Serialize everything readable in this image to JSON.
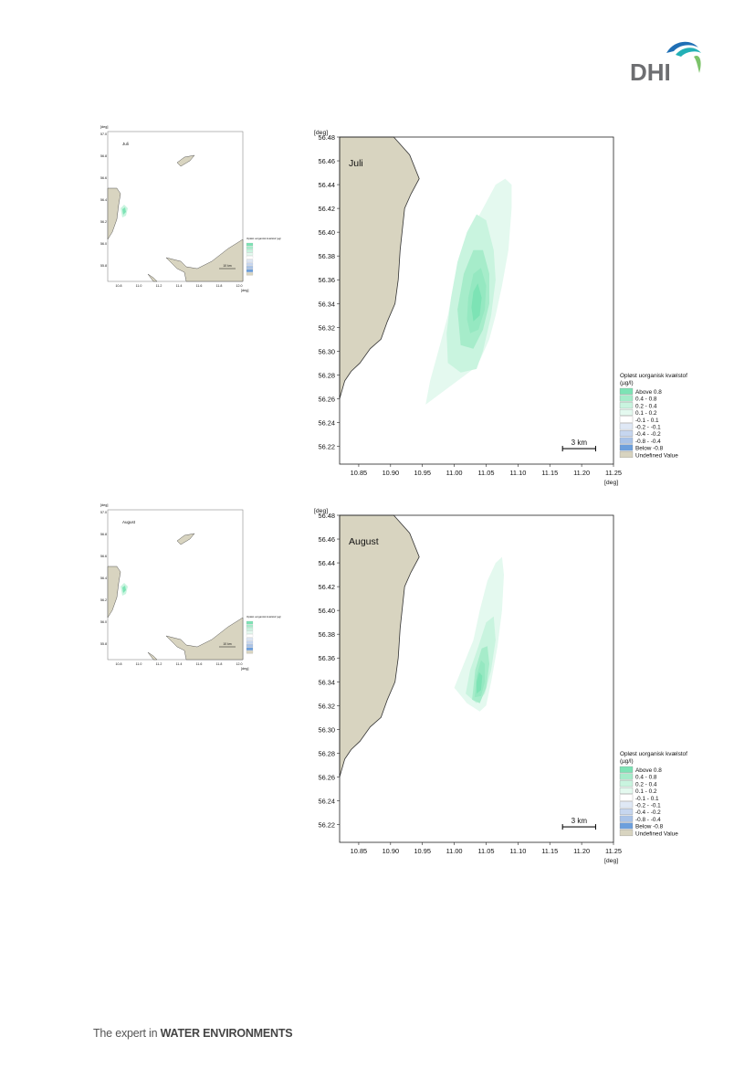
{
  "brand": {
    "logo_text": "DHI",
    "tagline_plain": "The expert in ",
    "tagline_bold": "WATER ENVIRONMENTS"
  },
  "colors": {
    "land": "#d8d4c0",
    "coast": "#333333",
    "above08": "#7de3b5",
    "c04_08": "#a6ecca",
    "c02_04": "#c9f4df",
    "c01_02": "#e4f9ef",
    "zero": "#ffffff",
    "n01_02": "#dfe8f5",
    "n02_04": "#c6d6ef",
    "n04_08": "#a9c3e8",
    "below": "#6c9fdc",
    "logo_blue": "#1f6fb5",
    "logo_teal": "#22b0b6",
    "logo_green": "#7cc36a"
  },
  "chart_data": [
    {
      "type": "heatmap",
      "title": "Juli",
      "xlabel": "[deg]",
      "ylabel": "[deg]",
      "xlim": [
        10.82,
        11.25
      ],
      "ylim": [
        56.205,
        56.48
      ],
      "xticks": [
        "10.85",
        "10.90",
        "10.95",
        "11.00",
        "11.05",
        "11.10",
        "11.15",
        "11.20",
        "11.25"
      ],
      "yticks": [
        "56.48",
        "56.46",
        "56.44",
        "56.42",
        "56.40",
        "56.38",
        "56.36",
        "56.34",
        "56.32",
        "56.30",
        "56.28",
        "56.26",
        "56.24",
        "56.22"
      ],
      "scale_bar": "3 km",
      "legend": {
        "title": "Opløst uorganisk kvælstof",
        "unit": "(µg/l)",
        "entries": [
          "Above  0.8",
          "0.4 -  0.8",
          "0.2 -  0.4",
          "0.1 -  0.2",
          "-0.1 -  0.1",
          "-0.2 - -0.1",
          "-0.4 - -0.2",
          "-0.8 - -0.4",
          "Below -0.8",
          "Undefined Value"
        ]
      },
      "plume": {
        "c01_02": [
          [
            10.955,
            56.255
          ],
          [
            10.975,
            56.263
          ],
          [
            11.005,
            56.275
          ],
          [
            11.03,
            56.285
          ],
          [
            11.04,
            56.292
          ],
          [
            11.055,
            56.31
          ],
          [
            11.065,
            56.33
          ],
          [
            11.075,
            56.355
          ],
          [
            11.085,
            56.385
          ],
          [
            11.09,
            56.42
          ],
          [
            11.09,
            56.44
          ],
          [
            11.08,
            56.445
          ],
          [
            11.065,
            56.44
          ],
          [
            11.05,
            56.425
          ],
          [
            11.03,
            56.405
          ],
          [
            11.012,
            56.385
          ],
          [
            11.0,
            56.36
          ],
          [
            10.99,
            56.33
          ],
          [
            10.975,
            56.3
          ],
          [
            10.962,
            56.275
          ]
        ],
        "c02_04": [
          [
            10.99,
            56.29
          ],
          [
            11.01,
            56.282
          ],
          [
            11.035,
            56.285
          ],
          [
            11.045,
            56.3
          ],
          [
            11.058,
            56.33
          ],
          [
            11.065,
            56.36
          ],
          [
            11.062,
            56.385
          ],
          [
            11.05,
            56.41
          ],
          [
            11.035,
            56.415
          ],
          [
            11.02,
            56.4
          ],
          [
            11.005,
            56.375
          ],
          [
            10.995,
            56.345
          ],
          [
            10.988,
            56.315
          ]
        ],
        "c04_08": [
          [
            11.01,
            56.305
          ],
          [
            11.03,
            56.302
          ],
          [
            11.045,
            56.318
          ],
          [
            11.055,
            56.34
          ],
          [
            11.055,
            56.365
          ],
          [
            11.045,
            56.385
          ],
          [
            11.03,
            56.385
          ],
          [
            11.015,
            56.365
          ],
          [
            11.005,
            56.335
          ]
        ],
        "above08": [
          [
            11.025,
            56.315
          ],
          [
            11.038,
            56.318
          ],
          [
            11.048,
            56.335
          ],
          [
            11.05,
            56.355
          ],
          [
            11.042,
            56.37
          ],
          [
            11.03,
            56.365
          ],
          [
            11.022,
            56.345
          ],
          [
            11.02,
            56.327
          ]
        ],
        "core": [
          [
            11.03,
            56.325
          ],
          [
            11.04,
            56.33
          ],
          [
            11.043,
            56.345
          ],
          [
            11.037,
            56.357
          ],
          [
            11.03,
            56.35
          ],
          [
            11.027,
            56.337
          ]
        ]
      }
    },
    {
      "type": "heatmap",
      "title": "August",
      "xlabel": "[deg]",
      "ylabel": "[deg]",
      "xlim": [
        10.82,
        11.25
      ],
      "ylim": [
        56.205,
        56.48
      ],
      "xticks": [
        "10.85",
        "10.90",
        "10.95",
        "11.00",
        "11.05",
        "11.10",
        "11.15",
        "11.20",
        "11.25"
      ],
      "yticks": [
        "56.48",
        "56.46",
        "56.44",
        "56.42",
        "56.40",
        "56.38",
        "56.36",
        "56.34",
        "56.32",
        "56.30",
        "56.28",
        "56.26",
        "56.24",
        "56.22"
      ],
      "scale_bar": "3 km",
      "legend": {
        "title": "Opløst uorganisk kvælstof",
        "unit": "(µg/l)",
        "entries": [
          "Above  0.8",
          "0.4 -  0.8",
          "0.2 -  0.4",
          "0.1 -  0.2",
          "-0.1 -  0.1",
          "-0.2 - -0.1",
          "-0.4 - -0.2",
          "-0.8 - -0.4",
          "Below -0.8",
          "Undefined Value"
        ]
      },
      "plume": {
        "c01_02": [
          [
            11.0,
            56.335
          ],
          [
            11.02,
            56.322
          ],
          [
            11.04,
            56.315
          ],
          [
            11.05,
            56.32
          ],
          [
            11.058,
            56.34
          ],
          [
            11.068,
            56.37
          ],
          [
            11.075,
            56.4
          ],
          [
            11.078,
            56.43
          ],
          [
            11.075,
            56.445
          ],
          [
            11.065,
            56.44
          ],
          [
            11.052,
            56.425
          ],
          [
            11.04,
            56.4
          ],
          [
            11.03,
            56.375
          ],
          [
            11.015,
            56.355
          ]
        ],
        "c02_04": [
          [
            11.018,
            56.33
          ],
          [
            11.035,
            56.322
          ],
          [
            11.048,
            56.33
          ],
          [
            11.058,
            56.35
          ],
          [
            11.065,
            56.375
          ],
          [
            11.062,
            56.395
          ],
          [
            11.05,
            56.39
          ],
          [
            11.038,
            56.37
          ],
          [
            11.025,
            56.35
          ]
        ],
        "c04_08": [
          [
            11.028,
            56.325
          ],
          [
            11.04,
            56.322
          ],
          [
            11.05,
            56.335
          ],
          [
            11.055,
            56.355
          ],
          [
            11.052,
            56.37
          ],
          [
            11.043,
            56.368
          ],
          [
            11.033,
            56.35
          ]
        ],
        "above08": [
          [
            11.032,
            56.327
          ],
          [
            11.042,
            56.328
          ],
          [
            11.048,
            56.34
          ],
          [
            11.048,
            56.355
          ],
          [
            11.042,
            56.358
          ],
          [
            11.035,
            56.345
          ]
        ],
        "core": [
          [
            11.035,
            56.33
          ],
          [
            11.042,
            56.333
          ],
          [
            11.044,
            56.345
          ],
          [
            11.039,
            56.348
          ],
          [
            11.035,
            56.34
          ]
        ]
      }
    }
  ],
  "overview": [
    {
      "title": "Juli",
      "xlabel": "[deg]",
      "ylabel": "[deg]",
      "xticks": [
        "10.8",
        "11.0",
        "11.2",
        "11.4",
        "11.6",
        "11.8",
        "12.0"
      ],
      "yticks": [
        "57.0",
        "56.8",
        "56.6",
        "56.4",
        "56.2",
        "56.0",
        "55.8"
      ],
      "legend_title": "Opløst uorganisk kvælstof (µg/l)",
      "scale_bar": "10 km"
    },
    {
      "title": "August",
      "xlabel": "[deg]",
      "ylabel": "[deg]",
      "xticks": [
        "10.8",
        "11.0",
        "11.2",
        "11.4",
        "11.6",
        "11.8",
        "12.0"
      ],
      "yticks": [
        "57.0",
        "56.8",
        "56.6",
        "56.4",
        "56.2",
        "56.0",
        "55.8"
      ],
      "legend_title": "Opløst uorganisk kvælstof (µg/l)",
      "scale_bar": "10 km"
    }
  ]
}
